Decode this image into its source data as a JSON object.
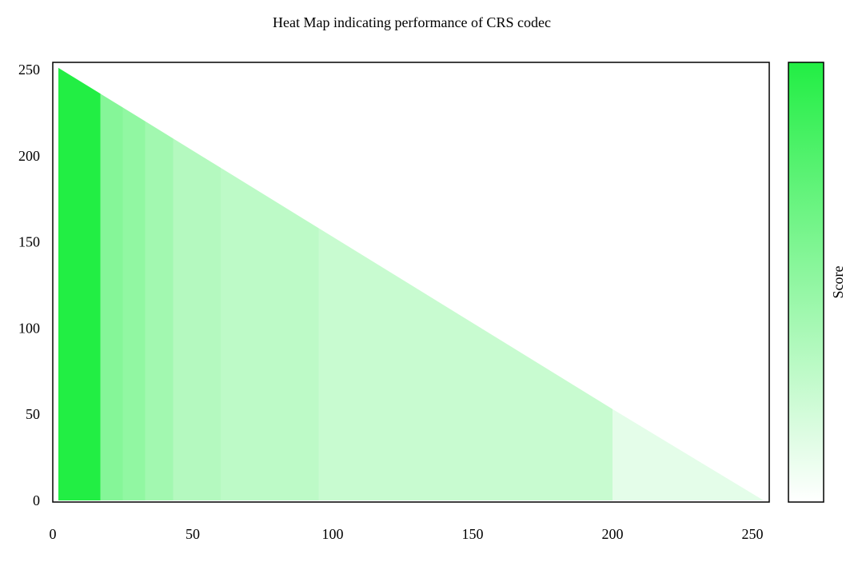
{
  "chart_data": {
    "type": "heatmap",
    "title": "Heat Map indicating performance of CRS codec",
    "xlabel": "",
    "ylabel": "",
    "colorbar_label": "Score",
    "xlim": [
      0,
      256
    ],
    "ylim": [
      0,
      255
    ],
    "x_ticks": [
      0,
      50,
      100,
      150,
      200,
      250
    ],
    "y_ticks": [
      0,
      50,
      100,
      150,
      200,
      250
    ],
    "region": "lower-left triangle: cells present where y <= 253 - x",
    "colormap": {
      "low": "#ffffff",
      "high": "#22ee44"
    },
    "x_bands": [
      {
        "x_from": 2,
        "x_to": 17,
        "score": 1.0
      },
      {
        "x_from": 17,
        "x_to": 25,
        "score": 0.55
      },
      {
        "x_from": 25,
        "x_to": 33,
        "score": 0.5
      },
      {
        "x_from": 33,
        "x_to": 43,
        "score": 0.42
      },
      {
        "x_from": 43,
        "x_to": 60,
        "score": 0.34
      },
      {
        "x_from": 60,
        "x_to": 95,
        "score": 0.3
      },
      {
        "x_from": 95,
        "x_to": 200,
        "score": 0.25
      },
      {
        "x_from": 200,
        "x_to": 254,
        "score": 0.12
      }
    ],
    "grid": false,
    "colorbar_position": "right"
  }
}
